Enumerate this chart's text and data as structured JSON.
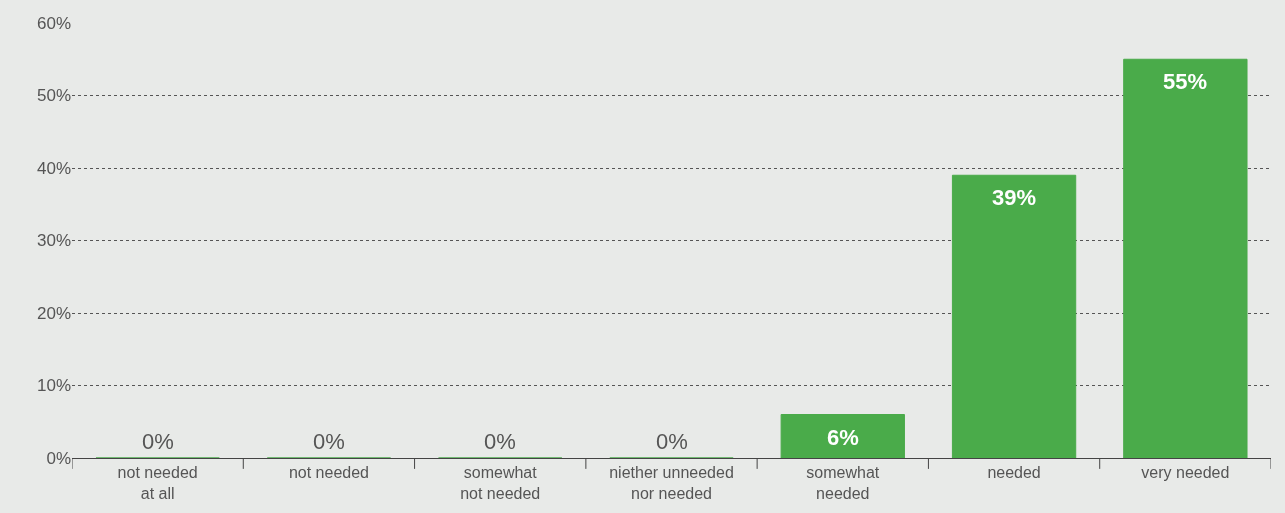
{
  "chart_data": {
    "type": "bar",
    "categories": [
      "not needed\nat all",
      "not needed",
      "somewhat\nnot needed",
      "niether unneeded\nnor needed",
      "somewhat\nneeded",
      "needed",
      "very needed"
    ],
    "values": [
      0,
      0,
      0,
      0,
      6,
      39,
      55
    ],
    "value_labels": [
      "0%",
      "0%",
      "0%",
      "0%",
      "6%",
      "39%",
      "55%"
    ],
    "color": "#4aab4a",
    "ylim": [
      0,
      60
    ],
    "yticks": [
      {
        "value": 0,
        "label": "0%"
      },
      {
        "value": 10,
        "label": "10%"
      },
      {
        "value": 20,
        "label": "20%"
      },
      {
        "value": 30,
        "label": "30%"
      },
      {
        "value": 40,
        "label": "40%"
      },
      {
        "value": 50,
        "label": "50%"
      },
      {
        "value": 60,
        "label": "60%"
      }
    ],
    "grid": "y",
    "legend": false
  }
}
